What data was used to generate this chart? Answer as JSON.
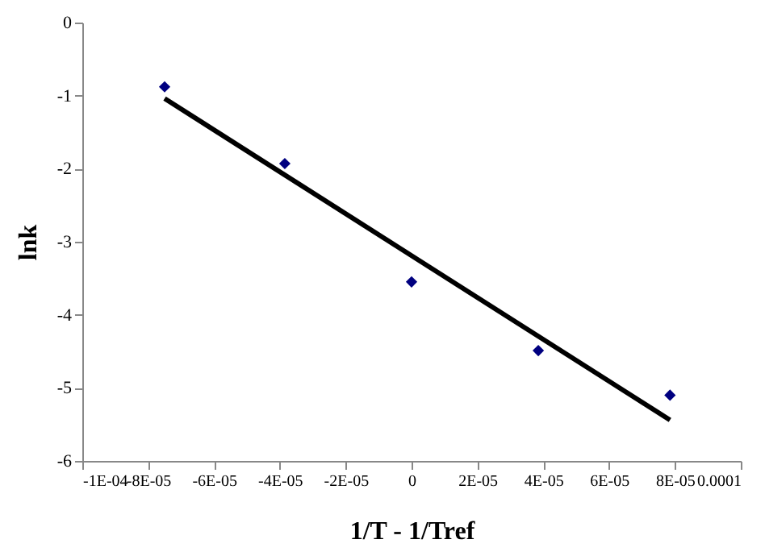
{
  "chart_data": {
    "type": "scatter",
    "xlabel": "1/T - 1/Tref",
    "ylabel": "lnk",
    "grid": false,
    "xlim": [
      -0.0001,
      0.0001
    ],
    "xticks": [
      {
        "value": -0.0001,
        "label": "-1E-04"
      },
      {
        "value": -8e-05,
        "label": "-8E-05"
      },
      {
        "value": -6e-05,
        "label": "-6E-05"
      },
      {
        "value": -4e-05,
        "label": "-4E-05"
      },
      {
        "value": -2e-05,
        "label": "-2E-05"
      },
      0,
      {
        "value": 2e-05,
        "label": "2E-05"
      },
      {
        "value": 4e-05,
        "label": "4E-05"
      },
      {
        "value": 6e-05,
        "label": "6E-05"
      },
      {
        "value": 8e-05,
        "label": "8E-05"
      },
      {
        "value": 0.0001,
        "label": "0.0001"
      }
    ],
    "ylim": [
      -6,
      0
    ],
    "yticks": [
      -6,
      -5,
      -4,
      -3,
      -2,
      -1,
      0
    ],
    "series": [
      {
        "marker": "diamond",
        "color": "#000080",
        "x": [
          -7.5e-05,
          -3.85e-05,
          0,
          3.85e-05,
          7.85e-05
        ],
        "values": [
          -0.88,
          -1.93,
          -3.55,
          -4.49,
          -5.1
        ]
      },
      {
        "type": "line",
        "marker": "none",
        "line_style": "solid",
        "color": "#000000",
        "x": [
          -7.5e-05,
          7.85e-05
        ],
        "values": [
          -1.04,
          -5.44
        ]
      }
    ]
  }
}
